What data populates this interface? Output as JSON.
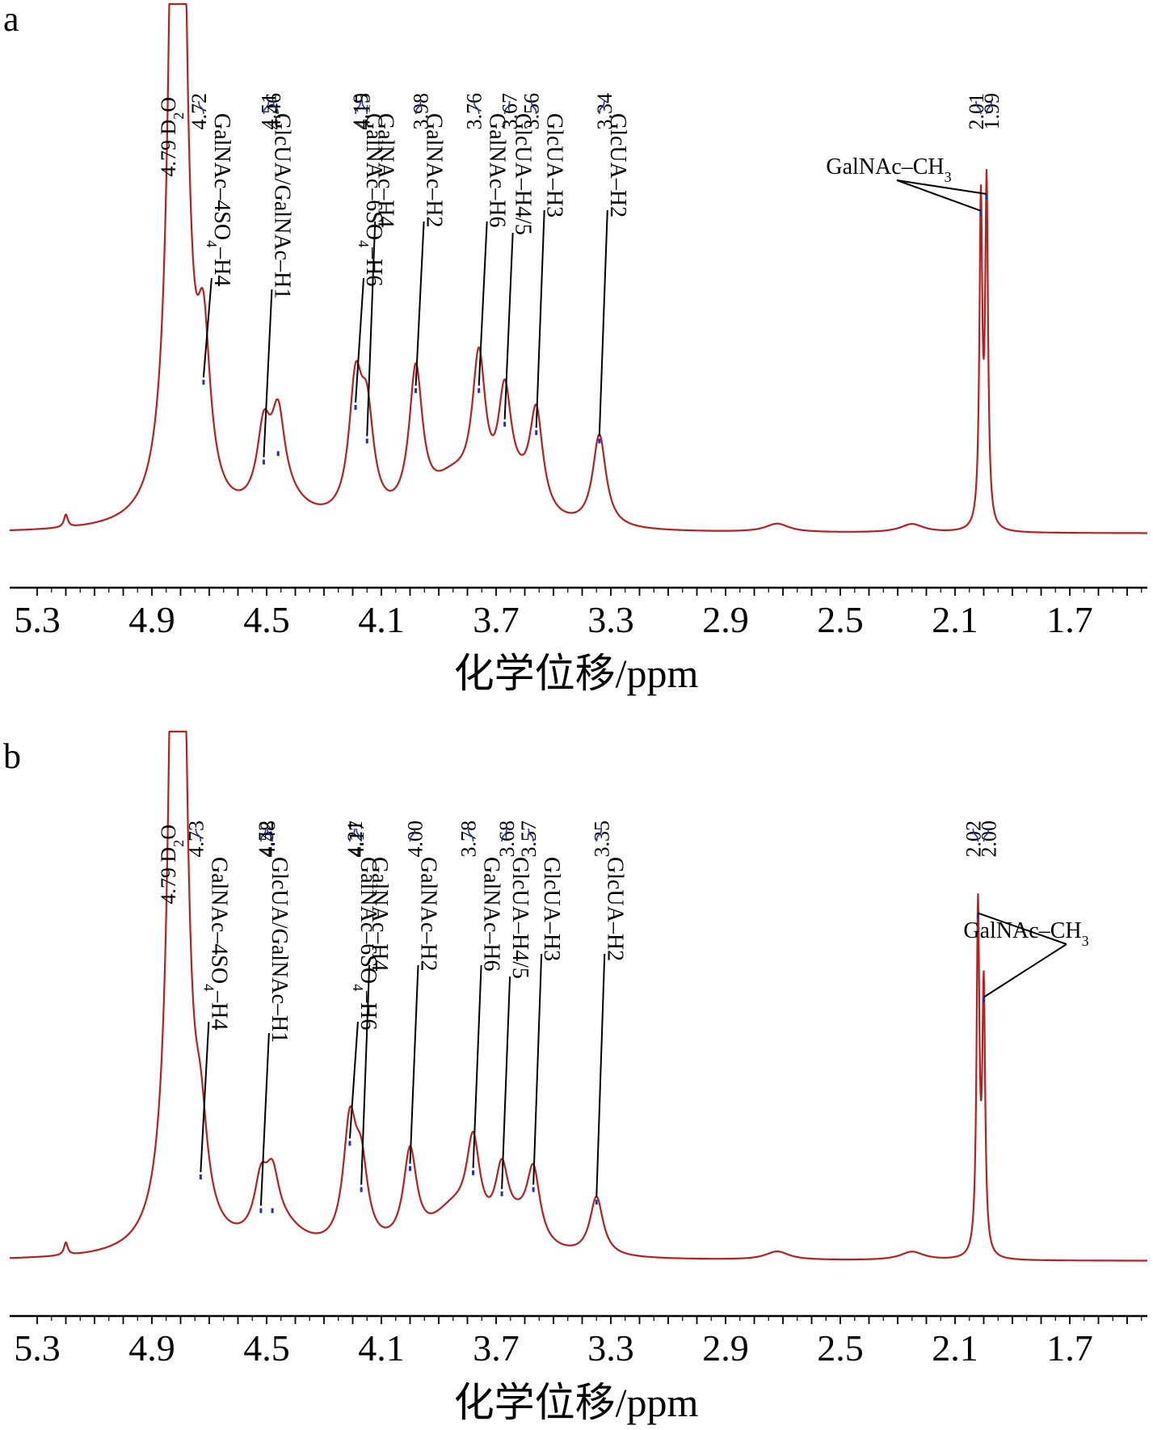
{
  "chart_data": [
    {
      "type": "line",
      "panel_label": "a",
      "xlabel": "化学位移/ppm",
      "x_ticks": [
        "5.3",
        "4.9",
        "4.5",
        "4.1",
        "3.7",
        "3.3",
        "2.9",
        "2.5",
        "2.1",
        "1.7"
      ],
      "xlim": [
        5.3,
        1.4
      ],
      "axis_reversed": true,
      "solvent_label": {
        "text": "4.79 D",
        "sub": "2",
        "tail": "O",
        "ppm": 4.79
      },
      "peaks": [
        {
          "ppm": 4.72,
          "label": "4.72",
          "assignment": "GalNAc–4SO",
          "assignment_sub": "4",
          "assignment_tail": "–H4",
          "height": 0.36
        },
        {
          "ppm": 4.51,
          "label": "4.51",
          "assignment": "GlcUA/GalNAc–H1",
          "height": 0.17
        },
        {
          "ppm": 4.46,
          "label": "4.46",
          "assignment": "",
          "height": 0.19
        },
        {
          "ppm": 4.19,
          "label": "4.19",
          "assignment": "GalNAc–6SO",
          "assignment_sub": "4",
          "assignment_tail": "–H6",
          "height": 0.3
        },
        {
          "ppm": 4.15,
          "label": "4.15",
          "assignment": "GalNAc–H4",
          "height": 0.22
        },
        {
          "ppm": 3.98,
          "label": "3.98",
          "assignment": "GalNAc–H2",
          "height": 0.34
        },
        {
          "ppm": 3.76,
          "label": "3.76",
          "assignment": "GalNAc–H6",
          "height": 0.34
        },
        {
          "ppm": 3.67,
          "label": "3.67",
          "assignment": "GlcUA–H4/5",
          "height": 0.26
        },
        {
          "ppm": 3.56,
          "label": "3.56",
          "assignment": "GlcUA–H3",
          "height": 0.24
        },
        {
          "ppm": 3.34,
          "label": "3.34",
          "assignment": "GlcUA–H2",
          "height": 0.22
        },
        {
          "ppm": 2.01,
          "label": "2.01",
          "assignment": "GalNAc–CH",
          "assignment_sub": "3",
          "height": 0.76
        },
        {
          "ppm": 1.99,
          "label": "1.99",
          "assignment": "",
          "height": 0.8
        }
      ]
    },
    {
      "type": "line",
      "panel_label": "b",
      "xlabel": "化学位移/ppm",
      "x_ticks": [
        "5.3",
        "4.9",
        "4.5",
        "4.1",
        "3.7",
        "3.3",
        "2.9",
        "2.5",
        "2.1",
        "1.7"
      ],
      "xlim": [
        5.3,
        1.4
      ],
      "axis_reversed": true,
      "solvent_label": {
        "text": "4.79 D",
        "sub": "2",
        "tail": "O",
        "ppm": 4.79
      },
      "peaks": [
        {
          "ppm": 4.73,
          "label": "4.73",
          "assignment": "GalNAc–4SO",
          "assignment_sub": "4",
          "assignment_tail": "–H4",
          "height": 0.2
        },
        {
          "ppm": 4.52,
          "label": "4.52",
          "assignment": "GlcUA/GalNAc–H1",
          "height": 0.12
        },
        {
          "ppm": 4.48,
          "label": "4.48",
          "assignment": "",
          "height": 0.12
        },
        {
          "ppm": 4.21,
          "label": "4.21",
          "assignment": "GalNAc–6SO",
          "assignment_sub": "4",
          "assignment_tail": "–H6",
          "height": 0.28
        },
        {
          "ppm": 4.17,
          "label": "4.17",
          "assignment": "GalNAc–H4",
          "height": 0.17
        },
        {
          "ppm": 4.0,
          "label": "4.00",
          "assignment": "GalNAc–H2",
          "height": 0.22
        },
        {
          "ppm": 3.78,
          "label": "3.78",
          "assignment": "GalNAc–H6",
          "height": 0.21
        },
        {
          "ppm": 3.68,
          "label": "3.68",
          "assignment": "GlcUA–H4/5",
          "height": 0.16
        },
        {
          "ppm": 3.57,
          "label": "3.57",
          "assignment": "GlcUA–H3",
          "height": 0.17
        },
        {
          "ppm": 3.35,
          "label": "3.35",
          "assignment": "GlcUA–H2",
          "height": 0.14
        },
        {
          "ppm": 2.02,
          "label": "2.02",
          "assignment": "GalNAc–CH",
          "assignment_sub": "3",
          "height": 0.82
        },
        {
          "ppm": 2.0,
          "label": "2.00",
          "assignment": "",
          "height": 0.62
        }
      ]
    }
  ],
  "colors": {
    "spectrum": "#b22222",
    "marker": "#2233aa",
    "axis": "#000000"
  }
}
